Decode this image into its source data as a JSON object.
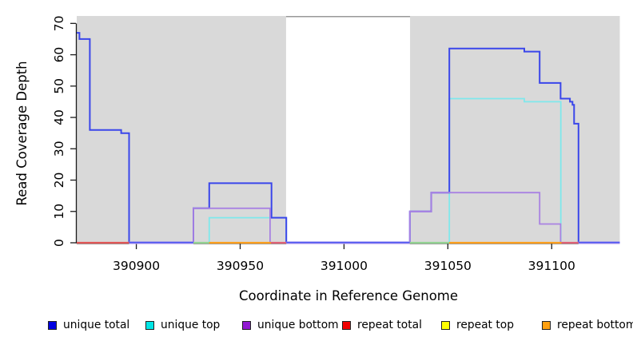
{
  "chart_data": {
    "type": "line",
    "step_mode": "after",
    "title": "",
    "xlabel": "Coordinate in Reference Genome",
    "ylabel": "Read Coverage Depth",
    "x_ticks": [
      390900,
      390950,
      391000,
      391050,
      391100
    ],
    "y_ticks": [
      0,
      10,
      20,
      30,
      40,
      50,
      60,
      70
    ],
    "x_range": [
      390871.3,
      391132.8
    ],
    "y_range": [
      0,
      72.4
    ],
    "grid": false,
    "shaded_regions": {
      "color": "#d9d9d9",
      "bands": [
        [
          390871.3,
          390972.1
        ],
        [
          391031.8,
          391132.8
        ]
      ]
    },
    "gap_region": {
      "from": 390972.1,
      "to": 391031.8,
      "top_border_color": "#989898"
    },
    "series": [
      {
        "name": "unique top",
        "color": "#7fe8ec",
        "steps": [
          [
            390871.3,
            0
          ],
          [
            390935.1,
            8
          ],
          [
            390972.2,
            0
          ],
          [
            391050.7,
            46
          ],
          [
            391086.8,
            45
          ],
          [
            391104.4,
            0
          ]
        ]
      },
      {
        "name": "unique total",
        "color": "#3a46ea",
        "steps": [
          [
            390871.3,
            67
          ],
          [
            390872.6,
            65
          ],
          [
            390877.6,
            36
          ],
          [
            390892.7,
            35
          ],
          [
            390896.5,
            0
          ],
          [
            390927.5,
            11
          ],
          [
            390935.1,
            19
          ],
          [
            390965.1,
            8
          ],
          [
            390972.2,
            0
          ],
          [
            391031.7,
            10
          ],
          [
            391042.0,
            16
          ],
          [
            391050.7,
            62
          ],
          [
            391086.8,
            61
          ],
          [
            391094.2,
            51
          ],
          [
            391104.3,
            46
          ],
          [
            391108.8,
            45
          ],
          [
            391110.0,
            44
          ],
          [
            391110.8,
            38
          ],
          [
            391112.9,
            0
          ]
        ]
      },
      {
        "name": "unique bottom",
        "color": "#a982e2",
        "steps": [
          [
            390871.3,
            0
          ],
          [
            390927.5,
            11
          ],
          [
            390964.4,
            0
          ],
          [
            391031.7,
            10
          ],
          [
            391042.0,
            16
          ],
          [
            391094.2,
            6
          ],
          [
            391104.3,
            0
          ]
        ]
      },
      {
        "name": "repeat total",
        "color": "#e05555",
        "steps": [
          [
            390871.3,
            0
          ]
        ]
      },
      {
        "name": "repeat top",
        "color": "#f2e641",
        "steps": [
          [
            390871.3,
            0
          ]
        ]
      },
      {
        "name": "repeat bottom",
        "color": "#ff9e1b",
        "steps": [
          [
            390871.3,
            0
          ]
        ]
      }
    ],
    "baseline_segments": [
      {
        "from": 390871.3,
        "to": 390896.5,
        "color": "#e05555"
      },
      {
        "from": 390896.5,
        "to": 390927.5,
        "color": "blue-purple"
      },
      {
        "from": 390927.5,
        "to": 390935.1,
        "color": "#92d292"
      },
      {
        "from": 390935.1,
        "to": 390964.8,
        "color": "#ff9e1b"
      },
      {
        "from": 390964.8,
        "to": 390972.2,
        "color": "#df5f75"
      },
      {
        "from": 390972.2,
        "to": 391031.7,
        "color": "blue-purple"
      },
      {
        "from": 391031.7,
        "to": 391050.7,
        "color": "#92d292"
      },
      {
        "from": 391050.7,
        "to": 391104.7,
        "color": "#ff9e1b"
      },
      {
        "from": 391104.7,
        "to": 391112.9,
        "color": "#df5f75"
      },
      {
        "from": 391112.9,
        "to": 391132.8,
        "color": "blue-purple"
      }
    ],
    "legend": [
      {
        "label": "unique total",
        "color": "#0000e0"
      },
      {
        "label": "unique top",
        "color": "#00e6e6"
      },
      {
        "label": "unique bottom",
        "color": "#921ad2"
      },
      {
        "label": "repeat total",
        "color": "#f00000"
      },
      {
        "label": "repeat top",
        "color": "#ffff00"
      },
      {
        "label": "repeat bottom",
        "color": "#ffa010"
      }
    ],
    "legend_position": "bottom"
  }
}
